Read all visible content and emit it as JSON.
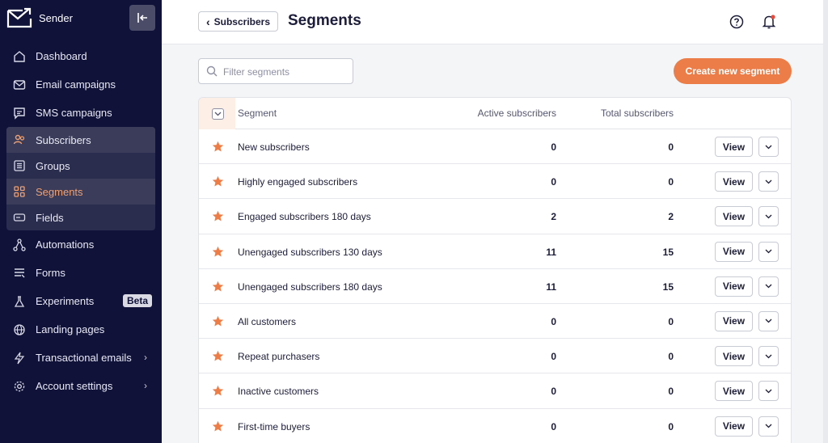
{
  "brand": {
    "name": "Sender"
  },
  "colors": {
    "sidebar_bg": "#10123a",
    "accent": "#ec7d48",
    "active_sub_text": "#f0a070"
  },
  "sidebar": {
    "items_top": [
      {
        "label": "Dashboard",
        "icon": "home-icon"
      },
      {
        "label": "Email campaigns",
        "icon": "mail-icon"
      },
      {
        "label": "SMS campaigns",
        "icon": "chat-icon"
      }
    ],
    "subscribers": {
      "label": "Subscribers",
      "children": [
        {
          "label": "Groups",
          "icon": "list-icon"
        },
        {
          "label": "Segments",
          "icon": "grid-icon",
          "active": true
        },
        {
          "label": "Fields",
          "icon": "tag-icon"
        }
      ]
    },
    "items_bottom": [
      {
        "label": "Automations",
        "icon": "flow-icon"
      },
      {
        "label": "Forms",
        "icon": "form-icon"
      },
      {
        "label": "Experiments",
        "icon": "flask-icon",
        "badge": "Beta"
      },
      {
        "label": "Landing pages",
        "icon": "globe-icon"
      },
      {
        "label": "Transactional emails",
        "icon": "bolt-icon",
        "chevron": "›"
      },
      {
        "label": "Account settings",
        "icon": "gear-icon",
        "chevron": "›"
      }
    ]
  },
  "header": {
    "back_label": "Subscribers",
    "back_chevron": "‹",
    "title": "Segments"
  },
  "toolbar": {
    "filter_placeholder": "Filter segments",
    "filter_value": "",
    "create_label": "Create new segment"
  },
  "table": {
    "columns": {
      "segment": "Segment",
      "active": "Active subscribers",
      "total": "Total subscribers"
    },
    "view_label": "View",
    "rows": [
      {
        "name": "New subscribers",
        "active": "0",
        "total": "0"
      },
      {
        "name": "Highly engaged subscribers",
        "active": "0",
        "total": "0"
      },
      {
        "name": "Engaged subscribers 180 days",
        "active": "2",
        "total": "2"
      },
      {
        "name": "Unengaged subscribers 130 days",
        "active": "11",
        "total": "15"
      },
      {
        "name": "Unengaged subscribers 180 days",
        "active": "11",
        "total": "15"
      },
      {
        "name": "All customers",
        "active": "0",
        "total": "0"
      },
      {
        "name": "Repeat purchasers",
        "active": "0",
        "total": "0"
      },
      {
        "name": "Inactive customers",
        "active": "0",
        "total": "0"
      },
      {
        "name": "First-time buyers",
        "active": "0",
        "total": "0"
      }
    ]
  }
}
